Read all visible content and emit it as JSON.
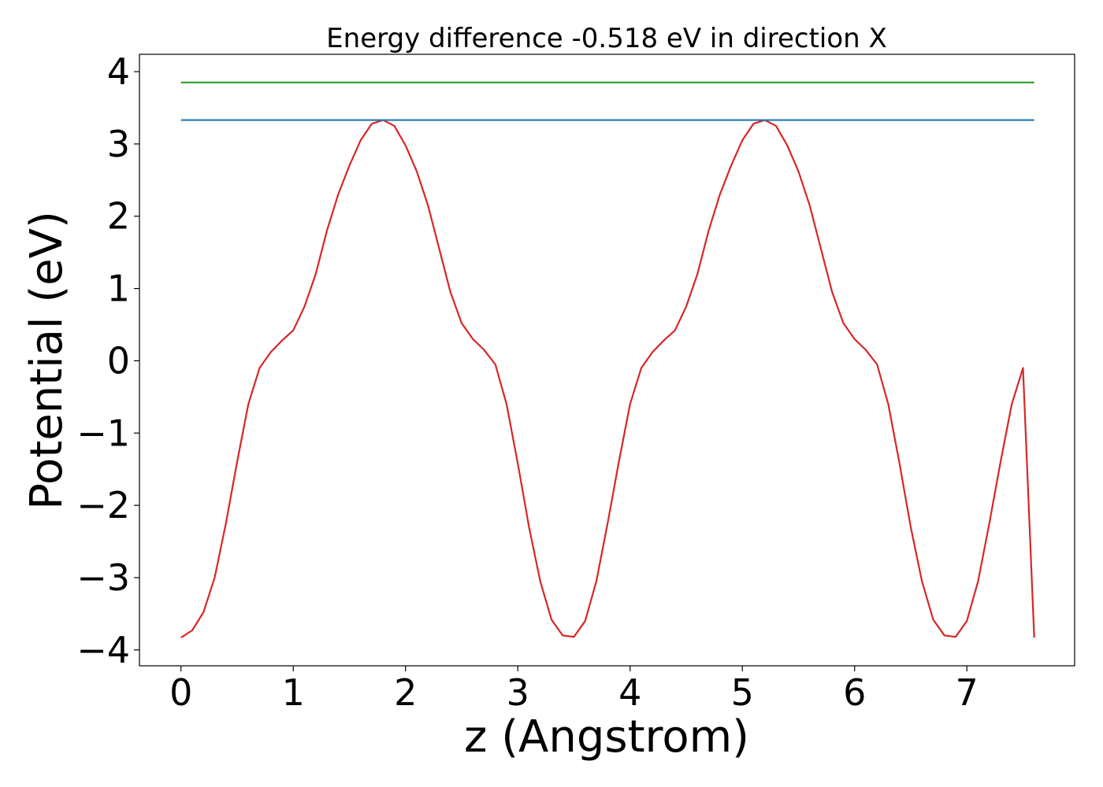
{
  "chart_data": {
    "type": "line",
    "title": "Energy difference -0.518 eV in direction X",
    "xlabel": "z (Angstrom)",
    "ylabel": "Potential (eV)",
    "xlim": [
      -0.37,
      7.96
    ],
    "ylim": [
      -4.22,
      4.24
    ],
    "xticks": [
      0,
      1,
      2,
      3,
      4,
      5,
      6,
      7
    ],
    "yticks": [
      -4,
      -3,
      -2,
      -1,
      0,
      1,
      2,
      3,
      4
    ],
    "xtick_labels": [
      "0",
      "1",
      "2",
      "3",
      "4",
      "5",
      "6",
      "7"
    ],
    "ytick_labels": [
      "−4",
      "−3",
      "−2",
      "−1",
      "0",
      "1",
      "2",
      "3",
      "4"
    ],
    "grid": false,
    "legend": "none",
    "series": [
      {
        "color": "#d62728",
        "x": [
          0.0,
          0.1,
          0.2,
          0.3,
          0.4,
          0.5,
          0.6,
          0.7,
          0.8,
          0.9,
          1.0,
          1.1,
          1.2,
          1.3,
          1.4,
          1.5,
          1.6,
          1.7,
          1.8,
          1.9,
          2.0,
          2.1,
          2.2,
          2.3,
          2.4,
          2.5,
          2.6,
          2.7,
          2.8,
          2.9,
          3.0,
          3.1,
          3.2,
          3.3,
          3.4,
          3.5,
          3.6,
          3.7,
          3.8,
          3.9,
          4.0,
          4.1,
          4.2,
          4.3,
          4.4,
          4.5,
          4.6,
          4.7,
          4.8,
          4.9,
          5.0,
          5.1,
          5.2,
          5.3,
          5.4,
          5.5,
          5.6,
          5.7,
          5.8,
          5.9,
          6.0,
          6.1,
          6.2,
          6.3,
          6.4,
          6.5,
          6.6,
          6.7,
          6.8,
          6.9,
          7.0,
          7.1,
          7.2,
          7.3,
          7.4,
          7.5,
          7.6
        ],
        "y": [
          -3.83,
          -3.73,
          -3.48,
          -3.0,
          -2.25,
          -1.4,
          -0.6,
          -0.1,
          0.12,
          0.28,
          0.42,
          0.75,
          1.2,
          1.8,
          2.3,
          2.7,
          3.05,
          3.28,
          3.33,
          3.25,
          2.98,
          2.62,
          2.15,
          1.55,
          0.95,
          0.52,
          0.3,
          0.15,
          -0.05,
          -0.6,
          -1.42,
          -2.3,
          -3.05,
          -3.58,
          -3.8,
          -3.82,
          -3.6,
          -3.05,
          -2.25,
          -1.4,
          -0.6,
          -0.1,
          0.12,
          0.28,
          0.42,
          0.75,
          1.2,
          1.8,
          2.3,
          2.7,
          3.05,
          3.28,
          3.33,
          3.25,
          2.98,
          2.62,
          2.15,
          1.55,
          0.95,
          0.52,
          0.3,
          0.15,
          -0.05,
          -0.6,
          -1.42,
          -2.3,
          -3.05,
          -3.58,
          -3.8,
          -3.82,
          -3.6,
          -3.05,
          -2.25,
          -1.4,
          -0.6,
          -0.1,
          -3.83
        ]
      },
      {
        "color": "#1f77b4",
        "x": [
          0.0,
          7.6
        ],
        "y": [
          3.33,
          3.33
        ]
      },
      {
        "color": "#2ca02c",
        "x": [
          0.0,
          7.6
        ],
        "y": [
          3.85,
          3.85
        ]
      }
    ]
  }
}
